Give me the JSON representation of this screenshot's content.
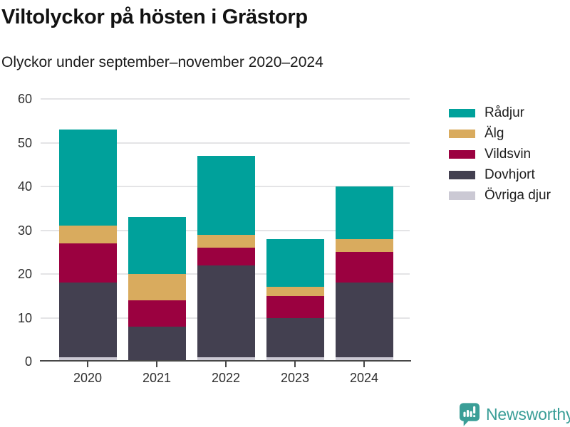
{
  "header": {
    "title": "Viltolyckor på hösten i Grästorp",
    "subtitle": "Olyckor under september–november 2020–2024"
  },
  "chart_data": {
    "type": "bar",
    "stacked": true,
    "title": "Viltolyckor på hösten i Grästorp",
    "subtitle": "Olyckor under september–november 2020–2024",
    "categories": [
      "2020",
      "2021",
      "2022",
      "2023",
      "2024"
    ],
    "series": [
      {
        "name": "Övriga djur",
        "color": "#cbc9d4",
        "values": [
          1,
          0,
          1,
          1,
          1
        ]
      },
      {
        "name": "Dovhjort",
        "color": "#434050",
        "values": [
          17,
          8,
          21,
          9,
          17
        ]
      },
      {
        "name": "Vildsvin",
        "color": "#9b0140",
        "values": [
          9,
          6,
          4,
          5,
          7
        ]
      },
      {
        "name": "Älg",
        "color": "#d9ab5e",
        "values": [
          4,
          6,
          3,
          2,
          3
        ]
      },
      {
        "name": "Rådjur",
        "color": "#00a19b",
        "values": [
          22,
          13,
          18,
          11,
          12
        ]
      }
    ],
    "totals": [
      53,
      33,
      47,
      28,
      40
    ],
    "xlabel": "",
    "ylabel": "",
    "ylim": [
      0,
      60
    ],
    "yticks": [
      0,
      10,
      20,
      30,
      40,
      50,
      60
    ],
    "grid": "horizontal",
    "legend_position": "right"
  },
  "legend": {
    "items": [
      {
        "label": "Rådjur",
        "color": "#00a19b"
      },
      {
        "label": "Älg",
        "color": "#d9ab5e"
      },
      {
        "label": "Vildsvin",
        "color": "#9b0140"
      },
      {
        "label": "Dovhjort",
        "color": "#434050"
      },
      {
        "label": "Övriga djur",
        "color": "#cbc9d4"
      }
    ]
  },
  "footer": {
    "brand": "Newsworthy",
    "brand_color": "#3a9e97"
  }
}
